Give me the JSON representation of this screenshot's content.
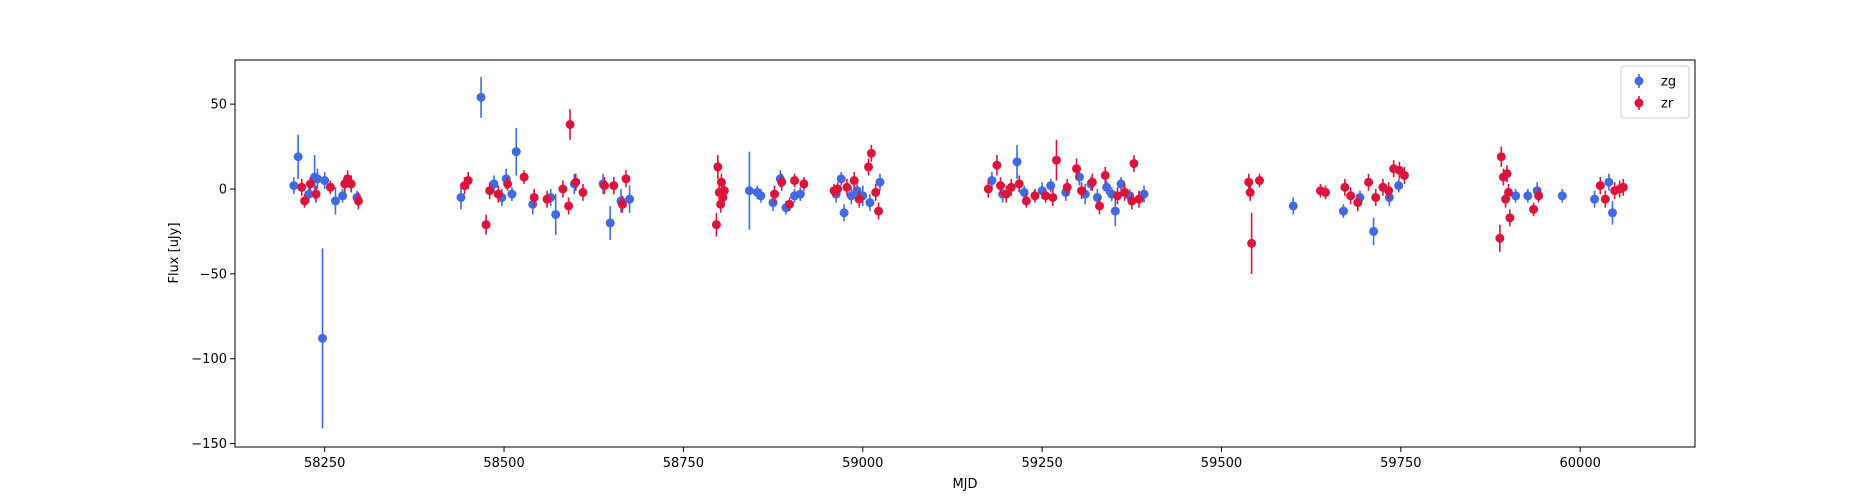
{
  "chart_data": {
    "type": "scatter",
    "title": "",
    "xlabel": "MJD",
    "ylabel": "Flux [uJy]",
    "xlim": [
      58125,
      60160
    ],
    "ylim": [
      -152,
      76
    ],
    "xticks": [
      58250,
      58500,
      58750,
      59000,
      59250,
      59500,
      59750,
      60000
    ],
    "yticks": [
      -150,
      -100,
      -50,
      0,
      50
    ],
    "grid": false,
    "legend_position": "top-right",
    "series": [
      {
        "name": "zg",
        "color": "#4169e1",
        "points": [
          {
            "x": 58207,
            "y": 2,
            "err": 5
          },
          {
            "x": 58213,
            "y": 19,
            "err": 13
          },
          {
            "x": 58228,
            "y": -3,
            "err": 5
          },
          {
            "x": 58236,
            "y": 7,
            "err": 13
          },
          {
            "x": 58240,
            "y": 6,
            "err": 6
          },
          {
            "x": 58247,
            "y": -88,
            "err": 53
          },
          {
            "x": 58250,
            "y": 5,
            "err": 5
          },
          {
            "x": 58265,
            "y": -7,
            "err": 8
          },
          {
            "x": 58275,
            "y": -4,
            "err": 4
          },
          {
            "x": 58295,
            "y": -5,
            "err": 4
          },
          {
            "x": 58440,
            "y": -5,
            "err": 7
          },
          {
            "x": 58468,
            "y": 54,
            "err": 12
          },
          {
            "x": 58486,
            "y": 3,
            "err": 5
          },
          {
            "x": 58497,
            "y": -5,
            "err": 5
          },
          {
            "x": 58503,
            "y": 6,
            "err": 6
          },
          {
            "x": 58511,
            "y": -3,
            "err": 4
          },
          {
            "x": 58517,
            "y": 22,
            "err": 14
          },
          {
            "x": 58540,
            "y": -9,
            "err": 6
          },
          {
            "x": 58565,
            "y": -5,
            "err": 5
          },
          {
            "x": 58572,
            "y": -15,
            "err": 12
          },
          {
            "x": 58598,
            "y": 3,
            "err": 6
          },
          {
            "x": 58638,
            "y": 3,
            "err": 6
          },
          {
            "x": 58648,
            "y": -20,
            "err": 10
          },
          {
            "x": 58663,
            "y": -7,
            "err": 7
          },
          {
            "x": 58675,
            "y": -6,
            "err": 8
          },
          {
            "x": 58842,
            "y": -1,
            "err": 23
          },
          {
            "x": 58853,
            "y": -2,
            "err": 4
          },
          {
            "x": 58858,
            "y": -4,
            "err": 4
          },
          {
            "x": 58875,
            "y": -8,
            "err": 5
          },
          {
            "x": 58885,
            "y": 6,
            "err": 5
          },
          {
            "x": 58893,
            "y": -11,
            "err": 4
          },
          {
            "x": 58905,
            "y": -4,
            "err": 4
          },
          {
            "x": 58913,
            "y": -3,
            "err": 4
          },
          {
            "x": 58963,
            "y": -3,
            "err": 5
          },
          {
            "x": 58970,
            "y": 6,
            "err": 4
          },
          {
            "x": 58974,
            "y": -14,
            "err": 5
          },
          {
            "x": 58984,
            "y": -4,
            "err": 5
          },
          {
            "x": 58992,
            "y": -1,
            "err": 6
          },
          {
            "x": 59000,
            "y": -4,
            "err": 6
          },
          {
            "x": 59010,
            "y": -8,
            "err": 5
          },
          {
            "x": 59024,
            "y": 4,
            "err": 5
          },
          {
            "x": 59180,
            "y": 5,
            "err": 5
          },
          {
            "x": 59195,
            "y": -3,
            "err": 5
          },
          {
            "x": 59215,
            "y": 16,
            "err": 10
          },
          {
            "x": 59225,
            "y": -2,
            "err": 4
          },
          {
            "x": 59250,
            "y": -1,
            "err": 5
          },
          {
            "x": 59262,
            "y": 2,
            "err": 4
          },
          {
            "x": 59283,
            "y": -2,
            "err": 5
          },
          {
            "x": 59302,
            "y": 7,
            "err": 5
          },
          {
            "x": 59310,
            "y": -3,
            "err": 6
          },
          {
            "x": 59318,
            "y": 3,
            "err": 4
          },
          {
            "x": 59327,
            "y": -5,
            "err": 5
          },
          {
            "x": 59340,
            "y": 1,
            "err": 4
          },
          {
            "x": 59347,
            "y": -3,
            "err": 4
          },
          {
            "x": 59352,
            "y": -13,
            "err": 9
          },
          {
            "x": 59360,
            "y": 3,
            "err": 4
          },
          {
            "x": 59372,
            "y": -4,
            "err": 4
          },
          {
            "x": 59392,
            "y": -3,
            "err": 5
          },
          {
            "x": 59600,
            "y": -10,
            "err": 5
          },
          {
            "x": 59670,
            "y": -13,
            "err": 4
          },
          {
            "x": 59693,
            "y": -5,
            "err": 4
          },
          {
            "x": 59712,
            "y": -25,
            "err": 8
          },
          {
            "x": 59734,
            "y": -5,
            "err": 5
          },
          {
            "x": 59747,
            "y": 2,
            "err": 4
          },
          {
            "x": 59910,
            "y": -4,
            "err": 4
          },
          {
            "x": 59927,
            "y": -4,
            "err": 4
          },
          {
            "x": 59940,
            "y": -1,
            "err": 5
          },
          {
            "x": 59975,
            "y": -4,
            "err": 4
          },
          {
            "x": 60020,
            "y": -6,
            "err": 5
          },
          {
            "x": 60040,
            "y": 4,
            "err": 5
          },
          {
            "x": 60045,
            "y": -14,
            "err": 7
          }
        ]
      },
      {
        "name": "zr",
        "color": "#dc143c",
        "points": [
          {
            "x": 58218,
            "y": 1,
            "err": 5
          },
          {
            "x": 58222,
            "y": -7,
            "err": 4
          },
          {
            "x": 58230,
            "y": 3,
            "err": 4
          },
          {
            "x": 58238,
            "y": -3,
            "err": 5
          },
          {
            "x": 58258,
            "y": 1,
            "err": 4
          },
          {
            "x": 58278,
            "y": 3,
            "err": 5
          },
          {
            "x": 58282,
            "y": 6,
            "err": 5
          },
          {
            "x": 58287,
            "y": 3,
            "err": 5
          },
          {
            "x": 58297,
            "y": -7,
            "err": 5
          },
          {
            "x": 58445,
            "y": 2,
            "err": 5
          },
          {
            "x": 58450,
            "y": 5,
            "err": 5
          },
          {
            "x": 58475,
            "y": -21,
            "err": 6
          },
          {
            "x": 58480,
            "y": -1,
            "err": 5
          },
          {
            "x": 58492,
            "y": -3,
            "err": 5
          },
          {
            "x": 58505,
            "y": 3,
            "err": 4
          },
          {
            "x": 58528,
            "y": 7,
            "err": 4
          },
          {
            "x": 58542,
            "y": -5,
            "err": 5
          },
          {
            "x": 58560,
            "y": -6,
            "err": 5
          },
          {
            "x": 58582,
            "y": 0,
            "err": 5
          },
          {
            "x": 58590,
            "y": -10,
            "err": 5
          },
          {
            "x": 58592,
            "y": 38,
            "err": 9
          },
          {
            "x": 58600,
            "y": 4,
            "err": 5
          },
          {
            "x": 58610,
            "y": -2,
            "err": 5
          },
          {
            "x": 58640,
            "y": 2,
            "err": 5
          },
          {
            "x": 58653,
            "y": 2,
            "err": 5
          },
          {
            "x": 58665,
            "y": -9,
            "err": 5
          },
          {
            "x": 58670,
            "y": 6,
            "err": 5
          },
          {
            "x": 58796,
            "y": -21,
            "err": 7
          },
          {
            "x": 58798,
            "y": 13,
            "err": 7
          },
          {
            "x": 58800,
            "y": -2,
            "err": 6
          },
          {
            "x": 58802,
            "y": -9,
            "err": 5
          },
          {
            "x": 58803,
            "y": 4,
            "err": 5
          },
          {
            "x": 58805,
            "y": -5,
            "err": 6
          },
          {
            "x": 58807,
            "y": -1,
            "err": 5
          },
          {
            "x": 58877,
            "y": -3,
            "err": 5
          },
          {
            "x": 58887,
            "y": 4,
            "err": 5
          },
          {
            "x": 58898,
            "y": -9,
            "err": 4
          },
          {
            "x": 58905,
            "y": 5,
            "err": 4
          },
          {
            "x": 58918,
            "y": 3,
            "err": 4
          },
          {
            "x": 58960,
            "y": -1,
            "err": 4
          },
          {
            "x": 58965,
            "y": 0,
            "err": 4
          },
          {
            "x": 58978,
            "y": 1,
            "err": 5
          },
          {
            "x": 58988,
            "y": 5,
            "err": 5
          },
          {
            "x": 58995,
            "y": -6,
            "err": 5
          },
          {
            "x": 59008,
            "y": 13,
            "err": 5
          },
          {
            "x": 59012,
            "y": 21,
            "err": 5
          },
          {
            "x": 59018,
            "y": -2,
            "err": 5
          },
          {
            "x": 59022,
            "y": -13,
            "err": 5
          },
          {
            "x": 59175,
            "y": 0,
            "err": 5
          },
          {
            "x": 59187,
            "y": 14,
            "err": 6
          },
          {
            "x": 59192,
            "y": 2,
            "err": 5
          },
          {
            "x": 59200,
            "y": -3,
            "err": 5
          },
          {
            "x": 59207,
            "y": 1,
            "err": 5
          },
          {
            "x": 59218,
            "y": 3,
            "err": 5
          },
          {
            "x": 59228,
            "y": -7,
            "err": 4
          },
          {
            "x": 59240,
            "y": -4,
            "err": 4
          },
          {
            "x": 59255,
            "y": -4,
            "err": 4
          },
          {
            "x": 59265,
            "y": -5,
            "err": 5
          },
          {
            "x": 59270,
            "y": 17,
            "err": 12
          },
          {
            "x": 59285,
            "y": 1,
            "err": 5
          },
          {
            "x": 59298,
            "y": 12,
            "err": 6
          },
          {
            "x": 59305,
            "y": -1,
            "err": 5
          },
          {
            "x": 59320,
            "y": 4,
            "err": 5
          },
          {
            "x": 59330,
            "y": -10,
            "err": 5
          },
          {
            "x": 59338,
            "y": 8,
            "err": 5
          },
          {
            "x": 59355,
            "y": -4,
            "err": 5
          },
          {
            "x": 59365,
            "y": -2,
            "err": 5
          },
          {
            "x": 59375,
            "y": -7,
            "err": 5
          },
          {
            "x": 59378,
            "y": 15,
            "err": 5
          },
          {
            "x": 59385,
            "y": -6,
            "err": 5
          },
          {
            "x": 59538,
            "y": 4,
            "err": 5
          },
          {
            "x": 59540,
            "y": -2,
            "err": 5
          },
          {
            "x": 59542,
            "y": -32,
            "err": 18
          },
          {
            "x": 59553,
            "y": 5,
            "err": 4
          },
          {
            "x": 59638,
            "y": -1,
            "err": 4
          },
          {
            "x": 59645,
            "y": -2,
            "err": 4
          },
          {
            "x": 59672,
            "y": 1,
            "err": 5
          },
          {
            "x": 59680,
            "y": -4,
            "err": 5
          },
          {
            "x": 59690,
            "y": -8,
            "err": 5
          },
          {
            "x": 59705,
            "y": 4,
            "err": 5
          },
          {
            "x": 59715,
            "y": -5,
            "err": 5
          },
          {
            "x": 59725,
            "y": 1,
            "err": 5
          },
          {
            "x": 59733,
            "y": -1,
            "err": 5
          },
          {
            "x": 59740,
            "y": 12,
            "err": 5
          },
          {
            "x": 59748,
            "y": 11,
            "err": 5
          },
          {
            "x": 59755,
            "y": 8,
            "err": 5
          },
          {
            "x": 59888,
            "y": -29,
            "err": 8
          },
          {
            "x": 59890,
            "y": 19,
            "err": 6
          },
          {
            "x": 59893,
            "y": 7,
            "err": 5
          },
          {
            "x": 59896,
            "y": -6,
            "err": 5
          },
          {
            "x": 59898,
            "y": 9,
            "err": 5
          },
          {
            "x": 59900,
            "y": -2,
            "err": 5
          },
          {
            "x": 59902,
            "y": -17,
            "err": 5
          },
          {
            "x": 59935,
            "y": -12,
            "err": 4
          },
          {
            "x": 59942,
            "y": -4,
            "err": 4
          },
          {
            "x": 60028,
            "y": 2,
            "err": 5
          },
          {
            "x": 60035,
            "y": -6,
            "err": 5
          },
          {
            "x": 60048,
            "y": -1,
            "err": 5
          },
          {
            "x": 60055,
            "y": 0,
            "err": 5
          },
          {
            "x": 60060,
            "y": 1,
            "err": 5
          }
        ]
      }
    ]
  }
}
